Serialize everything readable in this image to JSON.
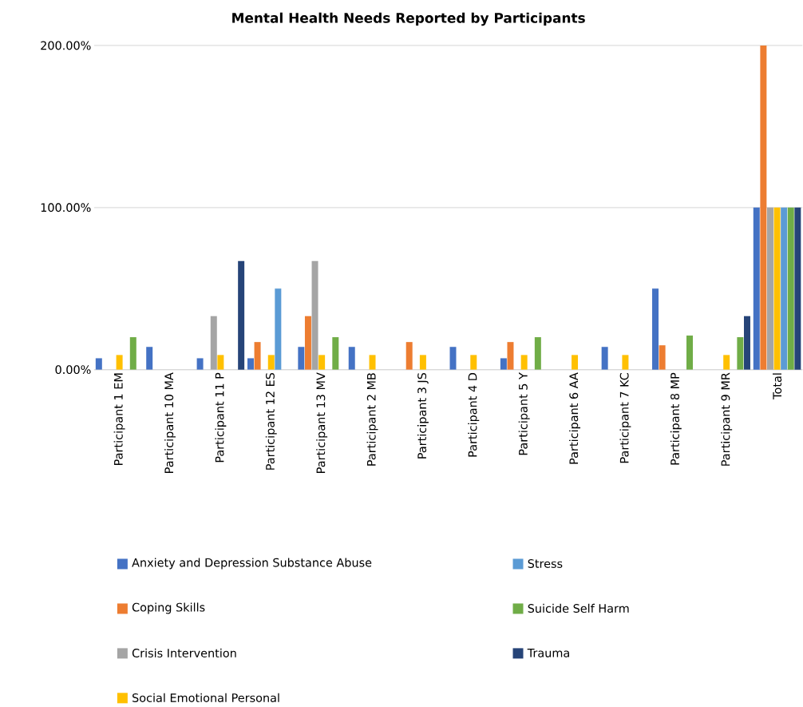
{
  "chart_data": {
    "type": "bar",
    "title": "Mental Health Needs Reported by Participants",
    "categories": [
      "Participant 1 EM",
      "Participant 10 MA",
      "Participant 11 P",
      "Participant 12 ES",
      "Participant 13 MV",
      "Participant 2 MB",
      "Participant 3 JS",
      "Participant 4 D",
      "Participant 5 Y",
      "Participant 6 AA",
      "Participant 7 KC",
      "Participant 8 MP",
      "Participant 9 MR",
      "Total"
    ],
    "series": [
      {
        "name": "Anxiety and Depression Substance Abuse",
        "color": "#4472c4",
        "values": [
          7,
          14,
          7,
          7,
          14,
          14,
          0,
          14,
          7,
          0,
          14,
          50,
          0,
          100
        ]
      },
      {
        "name": "Coping Skills",
        "color": "#ed7d31",
        "values": [
          0,
          0,
          0,
          17,
          33,
          0,
          17,
          0,
          17,
          0,
          0,
          15,
          0,
          200
        ]
      },
      {
        "name": "Crisis Intervention",
        "color": "#a5a5a5",
        "values": [
          0,
          0,
          33,
          0,
          67,
          0,
          0,
          0,
          0,
          0,
          0,
          0,
          0,
          100
        ]
      },
      {
        "name": "Social Emotional Personal",
        "color": "#ffc000",
        "values": [
          9,
          0,
          9,
          9,
          9,
          9,
          9,
          9,
          9,
          9,
          9,
          0,
          9,
          100
        ]
      },
      {
        "name": "Stress",
        "color": "#5b9bd5",
        "values": [
          0,
          0,
          0,
          50,
          0,
          0,
          0,
          0,
          0,
          0,
          0,
          0,
          0,
          100
        ]
      },
      {
        "name": "Suicide Self Harm",
        "color": "#70ad47",
        "values": [
          20,
          0,
          0,
          0,
          20,
          0,
          0,
          0,
          20,
          0,
          0,
          21,
          20,
          100
        ]
      },
      {
        "name": "Trauma",
        "color": "#264478",
        "values": [
          0,
          0,
          67,
          0,
          0,
          0,
          0,
          0,
          0,
          0,
          0,
          0,
          33,
          100
        ]
      }
    ],
    "ylim": [
      0,
      200
    ],
    "yticks": [
      {
        "value": 0,
        "label": "0.00%"
      },
      {
        "value": 100,
        "label": "100.00%"
      },
      {
        "value": 200,
        "label": "200.00%"
      }
    ],
    "grid": "y",
    "legend": "bottom"
  }
}
